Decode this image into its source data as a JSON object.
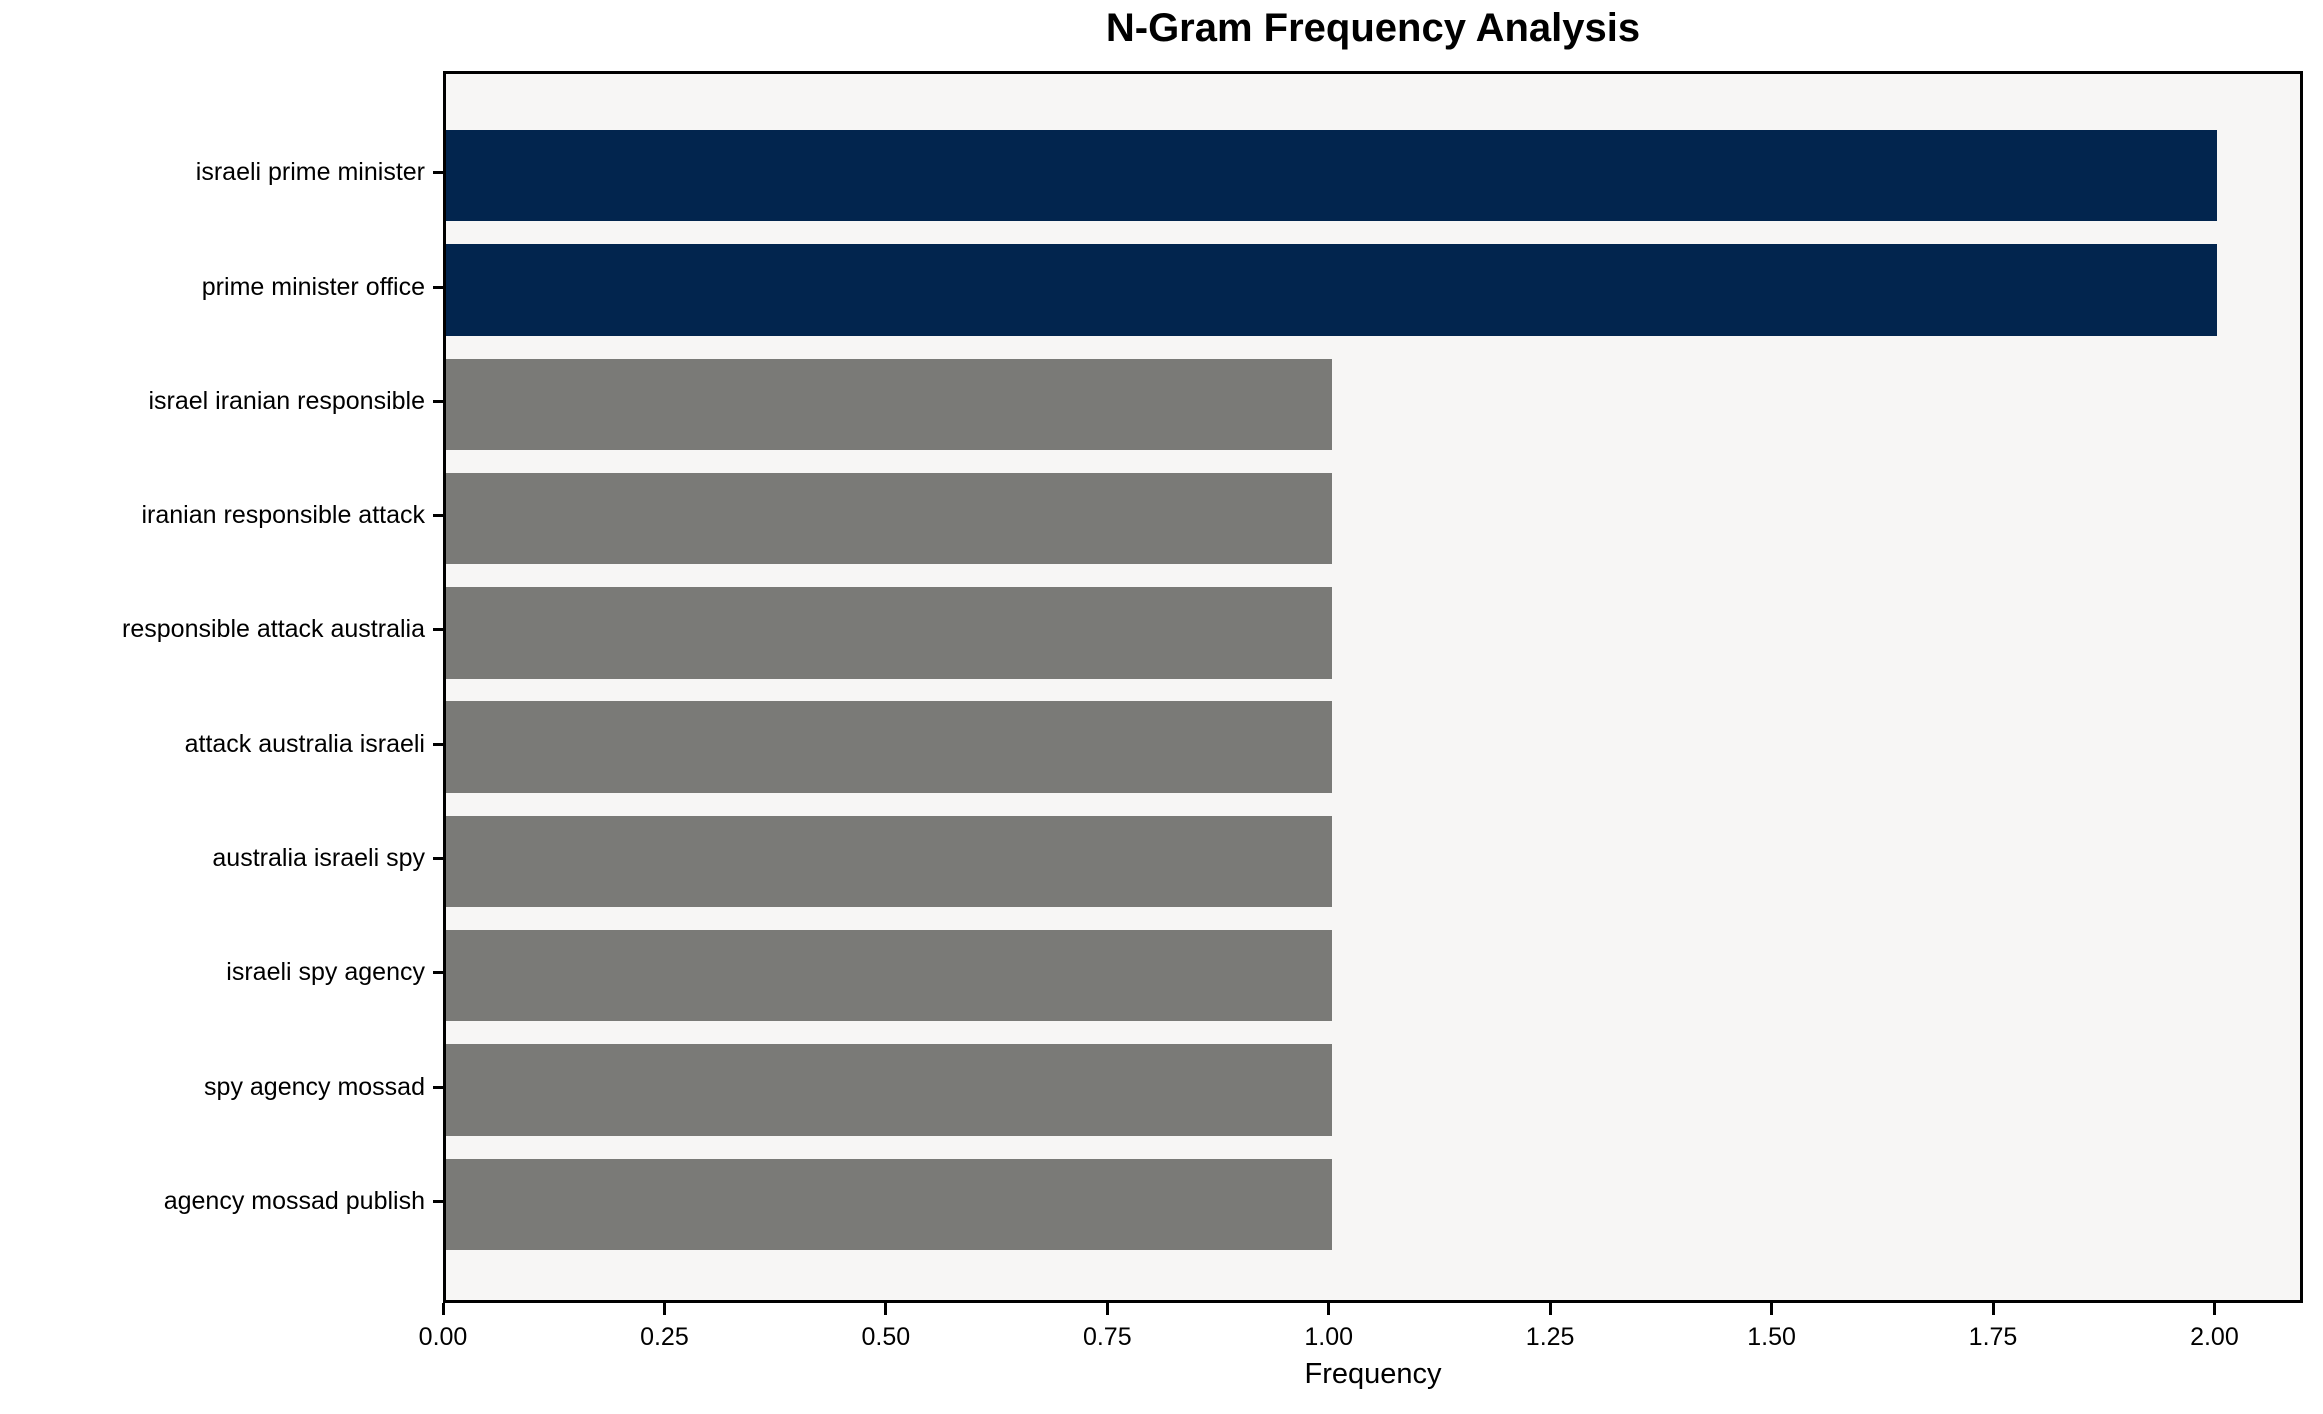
{
  "figure": {
    "background": "#ffffff"
  },
  "chart_data": {
    "type": "bar",
    "orientation": "horizontal",
    "title": "N-Gram Frequency Analysis",
    "xlabel": "Frequency",
    "ylabel": "",
    "categories": [
      "israeli prime minister",
      "prime minister office",
      "israel iranian responsible",
      "iranian responsible attack",
      "responsible attack australia",
      "attack australia israeli",
      "australia israeli spy",
      "israeli spy agency",
      "spy agency mossad",
      "agency mossad publish"
    ],
    "values": [
      2,
      2,
      1,
      1,
      1,
      1,
      1,
      1,
      1,
      1
    ],
    "bar_colors": [
      "#02254e",
      "#02254e",
      "#7a7a77",
      "#7a7a77",
      "#7a7a77",
      "#7a7a77",
      "#7a7a77",
      "#7a7a77",
      "#7a7a77",
      "#7a7a77"
    ],
    "x_ticks": [
      {
        "value": 0.0,
        "label": "0.00"
      },
      {
        "value": 0.25,
        "label": "0.25"
      },
      {
        "value": 0.5,
        "label": "0.50"
      },
      {
        "value": 0.75,
        "label": "0.75"
      },
      {
        "value": 1.0,
        "label": "1.00"
      },
      {
        "value": 1.25,
        "label": "1.25"
      },
      {
        "value": 1.5,
        "label": "1.50"
      },
      {
        "value": 1.75,
        "label": "1.75"
      },
      {
        "value": 2.0,
        "label": "2.00"
      }
    ],
    "xlim": [
      0,
      2.1
    ],
    "grid": false,
    "legend": null,
    "colors": {
      "highlight_bar": "#02254e",
      "default_bar": "#7a7a77",
      "plot_background": "#f7f6f5",
      "axes": "#000000",
      "text": "#000000"
    }
  }
}
